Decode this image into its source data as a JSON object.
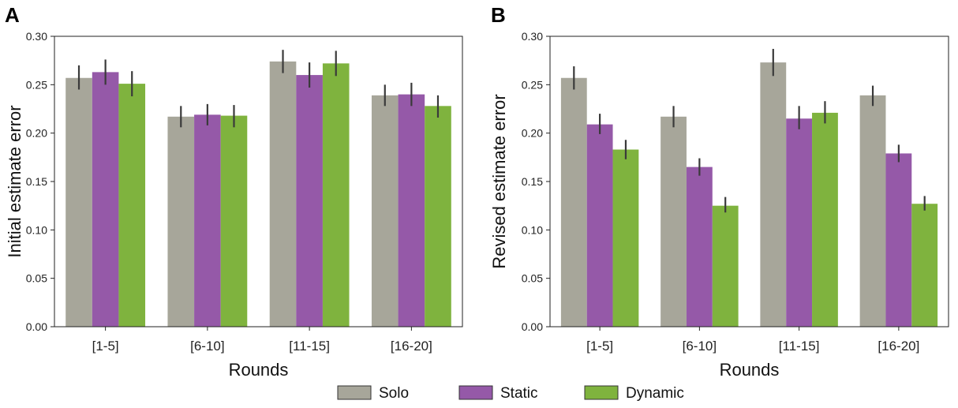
{
  "legend": [
    {
      "label": "Solo",
      "color": "#a7a69a"
    },
    {
      "label": "Static",
      "color": "#9559a8"
    },
    {
      "label": "Dynamic",
      "color": "#7fb33e"
    }
  ],
  "chart_data": [
    {
      "panel": "A",
      "type": "bar",
      "xlabel": "Rounds",
      "ylabel": "Initial estimate error",
      "ylim": [
        0,
        0.3
      ],
      "yticks": [
        "0.00",
        "0.05",
        "0.10",
        "0.15",
        "0.20",
        "0.25",
        "0.30"
      ],
      "categories": [
        "[1-5]",
        "[6-10]",
        "[11-15]",
        "[16-20]"
      ],
      "error_bars": true,
      "series": [
        {
          "name": "Solo",
          "values": [
            0.257,
            0.217,
            0.274,
            0.239
          ],
          "err_low": [
            0.245,
            0.206,
            0.262,
            0.228
          ],
          "err_high": [
            0.27,
            0.228,
            0.286,
            0.25
          ]
        },
        {
          "name": "Static",
          "values": [
            0.263,
            0.219,
            0.26,
            0.24
          ],
          "err_low": [
            0.25,
            0.208,
            0.247,
            0.228
          ],
          "err_high": [
            0.276,
            0.23,
            0.273,
            0.252
          ]
        },
        {
          "name": "Dynamic",
          "values": [
            0.251,
            0.218,
            0.272,
            0.228
          ],
          "err_low": [
            0.238,
            0.206,
            0.259,
            0.216
          ],
          "err_high": [
            0.264,
            0.229,
            0.285,
            0.239
          ]
        }
      ]
    },
    {
      "panel": "B",
      "type": "bar",
      "xlabel": "Rounds",
      "ylabel": "Revised estimate error",
      "ylim": [
        0,
        0.3
      ],
      "yticks": [
        "0.00",
        "0.05",
        "0.10",
        "0.15",
        "0.20",
        "0.25",
        "0.30"
      ],
      "categories": [
        "[1-5]",
        "[6-10]",
        "[11-15]",
        "[16-20]"
      ],
      "error_bars": true,
      "series": [
        {
          "name": "Solo",
          "values": [
            0.257,
            0.217,
            0.273,
            0.239
          ],
          "err_low": [
            0.245,
            0.206,
            0.259,
            0.228
          ],
          "err_high": [
            0.269,
            0.228,
            0.287,
            0.249
          ]
        },
        {
          "name": "Static",
          "values": [
            0.209,
            0.165,
            0.215,
            0.179
          ],
          "err_low": [
            0.199,
            0.156,
            0.204,
            0.17
          ],
          "err_high": [
            0.22,
            0.174,
            0.228,
            0.188
          ]
        },
        {
          "name": "Dynamic",
          "values": [
            0.183,
            0.125,
            0.221,
            0.127
          ],
          "err_low": [
            0.173,
            0.118,
            0.21,
            0.12
          ],
          "err_high": [
            0.193,
            0.134,
            0.233,
            0.135
          ]
        }
      ]
    }
  ]
}
